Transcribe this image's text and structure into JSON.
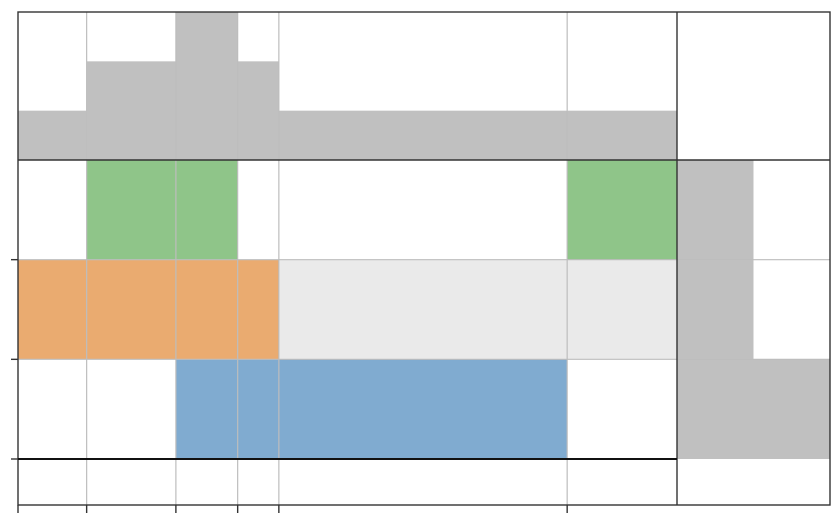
{
  "chart_data": {
    "type": "heatmap",
    "description_note": "",
    "x_boundaries": [
      0,
      1,
      2.3,
      3.2,
      3.8,
      8,
      9.6
    ],
    "rows": 3,
    "cells": [
      {
        "row": 0,
        "x0": 1,
        "x1": 3.2,
        "color": "#8fc589"
      },
      {
        "row": 0,
        "x0": 8,
        "x1": 9.6,
        "color": "#8fc589"
      },
      {
        "row": 1,
        "x0": 0,
        "x1": 3.8,
        "color": "#eaab70"
      },
      {
        "row": 1,
        "x0": 3.8,
        "x1": 9.6,
        "color": "#eaeaea"
      },
      {
        "row": 2,
        "x0": 2.3,
        "x1": 8,
        "color": "#80abd0"
      }
    ],
    "top_marginal": {
      "values": [
        1,
        2,
        3,
        2,
        1,
        1
      ],
      "ylim": [
        0,
        3
      ],
      "color": "#c0c0c0"
    },
    "right_marginal": {
      "values": [
        1,
        1,
        2
      ],
      "xlim": [
        0,
        2
      ],
      "color": "#c0c0c0"
    },
    "grid": true,
    "legend": "none"
  }
}
